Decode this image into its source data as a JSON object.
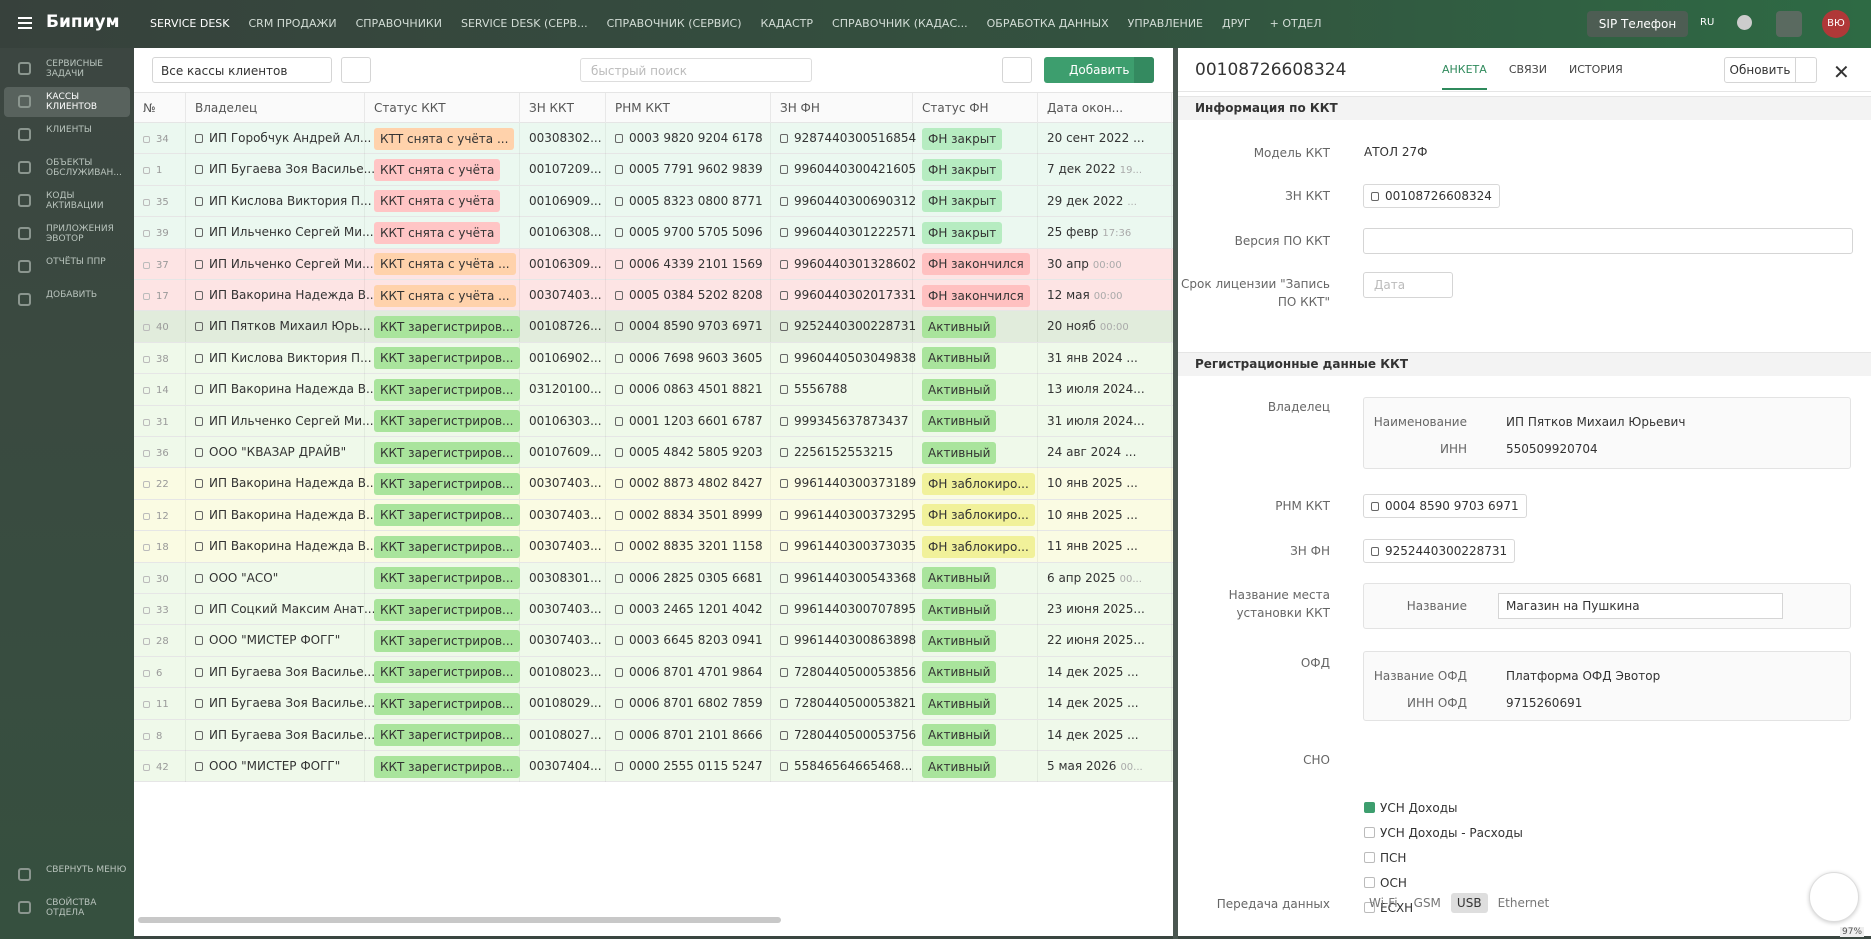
{
  "header": {
    "logo": "Бипиум",
    "nav": [
      "SERVICE DESK",
      "CRM ПРОДАЖИ",
      "СПРАВОЧНИКИ",
      "SERVICE DESK (СЕРВ...",
      "СПРАВОЧНИК (СЕРВИС)",
      "КАДАСТР",
      "СПРАВОЧНИК (КАДАС...",
      "ОБРАБОТКА ДАННЫХ",
      "УПРАВЛЕНИЕ",
      "ДРУГ",
      "+ ОТДЕЛ"
    ],
    "sip": "SIP Телефон",
    "lang": "RU",
    "avatar": "ВЮ"
  },
  "sidebar": {
    "items": [
      {
        "label": "СЕРВИСНЫЕ ЗАДАЧИ",
        "active": false
      },
      {
        "label": "КАССЫ КЛИЕНТОВ",
        "active": true
      },
      {
        "label": "КЛИЕНТЫ",
        "active": false
      },
      {
        "label": "ОБЪЕКТЫ ОБСЛУЖИВАН...",
        "active": false
      },
      {
        "label": "КОДЫ АКТИВАЦИИ",
        "active": false
      },
      {
        "label": "ПРИЛОЖЕНИЯ ЭВОТОР",
        "active": false
      },
      {
        "label": "ОТЧЁТЫ ППР",
        "active": false
      },
      {
        "label": "ДОБАВИТЬ",
        "active": false
      }
    ],
    "bottom": [
      "СВЕРНУТЬ МЕНЮ",
      "СВОЙСТВА ОТДЕЛА"
    ]
  },
  "toolbar": {
    "filter": "Все кассы клиентов",
    "search_placeholder": "быстрый поиск",
    "add": "Добавить"
  },
  "table": {
    "columns": [
      "№",
      "Владелец",
      "Статус ККТ",
      "ЗН ККТ",
      "РНМ ККТ",
      "ЗН ФН",
      "Статус ФН",
      "Дата окон..."
    ],
    "rows": [
      {
        "cells": [
          34,
          "ИП Горобчук Андрей Ал...",
          "КТТ снята с учёта ...",
          "00308302...",
          "0003 9820 9204 6178",
          "9287440300516854",
          "ФН закрыт",
          "20 сент 2022 ..."
        ],
        "bg": "#ebf8f0",
        "kkt_badge": "#ffd2ab",
        "fn_badge": "#b6ecc1"
      },
      {
        "cells": [
          1,
          "ИП Бугаева Зоя Василье...",
          "ККТ снята с учёта",
          "00107209...",
          "0005 7791 9602 9839",
          "9960440300421605",
          "ФН закрыт",
          "7 дек 2022"
        ],
        "time": "19...",
        "bg": "#ebf8f0",
        "kkt_badge": "#ffc5c5",
        "fn_badge": "#b6ecc1"
      },
      {
        "cells": [
          35,
          "ИП Кислова Виктория П...",
          "ККТ снята с учёта",
          "00106909...",
          "0005 8323 0800 8771",
          "9960440300690312",
          "ФН закрыт",
          "29 дек 2022"
        ],
        "time": "...",
        "bg": "#ebf8f0",
        "kkt_badge": "#ffc5c5",
        "fn_badge": "#b6ecc1"
      },
      {
        "cells": [
          39,
          "ИП Ильченко Сергей Ми...",
          "ККТ снята с учёта",
          "00106308...",
          "0005 9700 5705 5096",
          "9960440301222571",
          "ФН закрыт",
          "25 февр"
        ],
        "time": "17:36",
        "bg": "#ebf8f0",
        "kkt_badge": "#ffc5c5",
        "fn_badge": "#b6ecc1"
      },
      {
        "cells": [
          37,
          "ИП Ильченко Сергей Ми...",
          "ККТ снята с учёта ...",
          "00106309...",
          "0006 4339 2101 1569",
          "9960440301328602",
          "ФН закончился",
          "30 апр"
        ],
        "time": "00:00",
        "bg": "#fde4e4",
        "kkt_badge": "#ffd2ab",
        "fn_badge": "#ffc0c0"
      },
      {
        "cells": [
          17,
          "ИП Вакорина Надежда В...",
          "ККТ снята с учёта ...",
          "00307403...",
          "0005 0384 5202 8208",
          "9960440302017331",
          "ФН закончился",
          "12 мая"
        ],
        "time": "00:00",
        "bg": "#fde4e4",
        "kkt_badge": "#ffd2ab",
        "fn_badge": "#ffc0c0"
      },
      {
        "cells": [
          40,
          "ИП Пятков Михаил Юрь...",
          "ККТ зарегистриров...",
          "00108726...",
          "0004 8590 9703 6971",
          "9252440300228731",
          "Активный",
          "20 нояб"
        ],
        "time": "00:00",
        "bg": "#e1ecdc",
        "kkt_badge": "#a9e49c",
        "fn_badge": "#a9e49c"
      },
      {
        "cells": [
          38,
          "ИП Кислова Виктория П...",
          "ККТ зарегистриров...",
          "00106902...",
          "0006 7698 9603 3605",
          "9960440503049838",
          "Активный",
          "31 янв 2024 ..."
        ],
        "bg": "#eff9ea",
        "kkt_badge": "#a9e49c",
        "fn_badge": "#a9e49c"
      },
      {
        "cells": [
          14,
          "ИП Вакорина Надежда В...",
          "ККТ зарегистриров...",
          "03120100...",
          "0006 0863 4501 8821",
          "5556788",
          "Активный",
          "13 июля 2024..."
        ],
        "bg": "#eff9ea",
        "kkt_badge": "#a9e49c",
        "fn_badge": "#a9e49c"
      },
      {
        "cells": [
          31,
          "ИП Ильченко Сергей Ми...",
          "ККТ зарегистриров...",
          "00106303...",
          "0001 1203 6601 6787",
          "999345637873437",
          "Активный",
          "31 июля 2024..."
        ],
        "bg": "#eff9ea",
        "kkt_badge": "#a9e49c",
        "fn_badge": "#a9e49c"
      },
      {
        "cells": [
          36,
          "ООО \"КВАЗАР ДРАЙВ\"",
          "ККТ зарегистриров...",
          "00107609...",
          "0005 4842 5805 9203",
          "2256152553215",
          "Активный",
          "24 авг 2024 ..."
        ],
        "bg": "#eff9ea",
        "kkt_badge": "#a9e49c",
        "fn_badge": "#a9e49c"
      },
      {
        "cells": [
          22,
          "ИП Вакорина Надежда В...",
          "ККТ зарегистриров...",
          "00307403...",
          "0002 8873 4802 8427",
          "9961440300373189",
          "ФН заблокиро...",
          "10 янв 2025 ..."
        ],
        "bg": "#fafbe3",
        "kkt_badge": "#a9e49c",
        "fn_badge": "#f1f19a"
      },
      {
        "cells": [
          12,
          "ИП Вакорина Надежда В...",
          "ККТ зарегистриров...",
          "00307403...",
          "0002 8834 3501 8999",
          "9961440300373295",
          "ФН заблокиро...",
          "10 янв 2025 ..."
        ],
        "bg": "#fafbe3",
        "kkt_badge": "#a9e49c",
        "fn_badge": "#f1f19a"
      },
      {
        "cells": [
          18,
          "ИП Вакорина Надежда В...",
          "ККТ зарегистриров...",
          "00307403...",
          "0002 8835 3201 1158",
          "9961440300373035",
          "ФН заблокиро...",
          "11 янв 2025 ..."
        ],
        "bg": "#fafbe3",
        "kkt_badge": "#a9e49c",
        "fn_badge": "#f1f19a"
      },
      {
        "cells": [
          30,
          "ООО \"АСО\"",
          "ККТ зарегистриров...",
          "00308301...",
          "0006 2825 0305 6681",
          "9961440300543368",
          "Активный",
          "6 апр 2025"
        ],
        "time": "00...",
        "bg": "#eff9ea",
        "kkt_badge": "#a9e49c",
        "fn_badge": "#a9e49c"
      },
      {
        "cells": [
          33,
          "ИП Соцкий Максим Анат...",
          "ККТ зарегистриров...",
          "00307403...",
          "0003 2465 1201 4042",
          "9961440300707895",
          "Активный",
          "23 июня 2025..."
        ],
        "bg": "#eff9ea",
        "kkt_badge": "#a9e49c",
        "fn_badge": "#a9e49c"
      },
      {
        "cells": [
          28,
          "ООО \"МИСТЕР ФОГГ\"",
          "ККТ зарегистриров...",
          "00307403...",
          "0003 6645 8203 0941",
          "9961440300863898",
          "Активный",
          "22 июня 2025..."
        ],
        "bg": "#eff9ea",
        "kkt_badge": "#a9e49c",
        "fn_badge": "#a9e49c"
      },
      {
        "cells": [
          6,
          "ИП Бугаева Зоя Василье...",
          "ККТ зарегистриров...",
          "00108023...",
          "0006 8701 4701 9864",
          "7280440500053856",
          "Активный",
          "14 дек 2025 ..."
        ],
        "bg": "#eff9ea",
        "kkt_badge": "#a9e49c",
        "fn_badge": "#a9e49c"
      },
      {
        "cells": [
          11,
          "ИП Бугаева Зоя Василье...",
          "ККТ зарегистриров...",
          "00108029...",
          "0006 8701 6802 7859",
          "7280440500053821",
          "Активный",
          "14 дек 2025 ..."
        ],
        "bg": "#eff9ea",
        "kkt_badge": "#a9e49c",
        "fn_badge": "#a9e49c"
      },
      {
        "cells": [
          8,
          "ИП Бугаева Зоя Василье...",
          "ККТ зарегистриров...",
          "00108027...",
          "0006 8701 2101 8666",
          "7280440500053756",
          "Активный",
          "14 дек 2025 ..."
        ],
        "bg": "#eff9ea",
        "kkt_badge": "#a9e49c",
        "fn_badge": "#a9e49c"
      },
      {
        "cells": [
          42,
          "ООО \"МИСТЕР ФОГГ\"",
          "ККТ зарегистриров...",
          "00307404...",
          "0000 2555 0115 5247",
          "55846564665468...",
          "Активный",
          "5 мая 2026"
        ],
        "time": "00...",
        "bg": "#eff9ea",
        "kkt_badge": "#a9e49c",
        "fn_badge": "#a9e49c"
      }
    ]
  },
  "detail": {
    "number": "00108726608324",
    "tabs": [
      {
        "label": "АНКЕТА",
        "active": true
      },
      {
        "label": "СВЯЗИ",
        "active": false
      },
      {
        "label": "ИСТОРИЯ",
        "active": false
      }
    ],
    "refresh": "Обновить",
    "info_title": "Информация по ККТ",
    "model_label": "Модель ККТ",
    "model": "АТОЛ 27Ф",
    "zn_kkt_label": "ЗН ККТ",
    "zn_kkt": "00108726608324",
    "version_label": "Версия ПО ККТ",
    "license_label": "Срок лицензии \"Запись ПО ККТ\"",
    "date_placeholder": "Дата",
    "reg_title": "Регистрационные данные ККТ",
    "owner_label": "Владелец",
    "owner_name_label": "Наименование",
    "owner_name": "ИП Пятков Михаил Юрьевич",
    "inn_label": "ИНН",
    "inn": "550509920704",
    "rnm_label": "РНМ ККТ",
    "rnm": "0004 8590 9703 6971",
    "zn_fn_label": "ЗН ФН",
    "zn_fn": "9252440300228731",
    "place_label": "Название места установки ККТ",
    "place_name_label": "Название",
    "place_name": "Магазин на Пушкина",
    "ofd_label": "ОФД",
    "ofd_name_label": "Название ОФД",
    "ofd_name": "Платформа ОФД Эвотор",
    "ofd_inn_label": "ИНН ОФД",
    "ofd_inn": "9715260691",
    "sno_label": "СНО",
    "sno": [
      {
        "label": "УСН Доходы",
        "checked": true
      },
      {
        "label": "УСН Доходы - Расходы",
        "checked": false
      },
      {
        "label": "ПСН",
        "checked": false
      },
      {
        "label": "ОСН",
        "checked": false
      },
      {
        "label": "ЕСХН",
        "checked": false
      }
    ],
    "transfer_label": "Передача данных",
    "transfer": [
      {
        "label": "Wi-Fi",
        "selected": false
      },
      {
        "label": "GSM",
        "selected": false
      },
      {
        "label": "USB",
        "selected": true
      },
      {
        "label": "Ethernet",
        "selected": false
      }
    ]
  },
  "zoom": "97%"
}
